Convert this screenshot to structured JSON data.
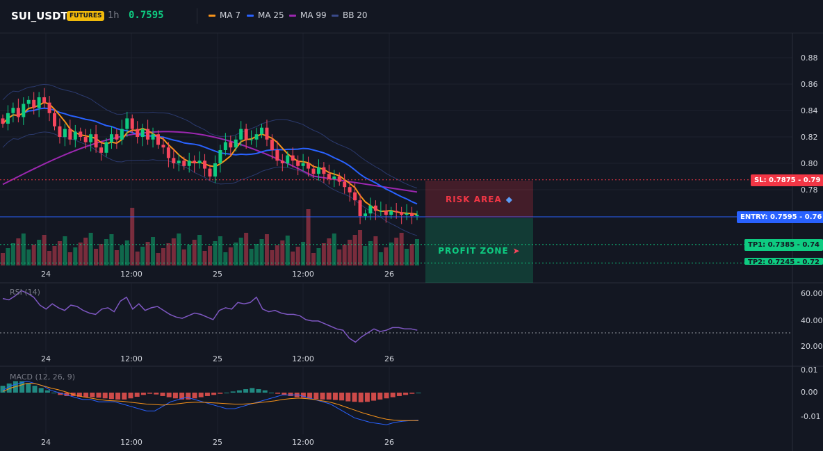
{
  "header": {
    "symbol": "SUI_USDT",
    "badge": "FUTURES",
    "timeframe": "1h",
    "last_price": "0.7595",
    "indicators": [
      {
        "label": "MA 7",
        "color": "#f7931a"
      },
      {
        "label": "MA 25",
        "color": "#2962ff"
      },
      {
        "label": "MA 99",
        "color": "#9c27b0"
      },
      {
        "label": "BB 20",
        "color": "#2b3a6e"
      }
    ]
  },
  "price_pane": {
    "y_ticks": [
      "0.88",
      "0.86",
      "0.84",
      "0.82",
      "0.80",
      "0.78"
    ],
    "x_ticks": [
      "24",
      "12:00",
      "25",
      "12:00",
      "26"
    ],
    "levels": {
      "sl": {
        "label": "SL: 0.7875",
        "value": "0.79",
        "price": 0.7875,
        "color": "#f23645"
      },
      "entry": {
        "label": "ENTRY: 0.7595",
        "value": "0.76",
        "price": 0.7595,
        "color": "#2962ff"
      },
      "tp1": {
        "label": "TP1: 0.7385",
        "value": "0.74",
        "price": 0.7385,
        "color": "#0ecb81"
      },
      "tp2": {
        "label": "TP2: 0.7245",
        "value": "0.72",
        "price": 0.7245,
        "color": "#0ecb81"
      }
    },
    "risk_zone_label": "RISK AREA",
    "risk_zone_icon": "shield-icon",
    "profit_zone_label": "PROFIT ZONE",
    "profit_zone_icon": "rocket-icon"
  },
  "rsi_pane": {
    "label": "RSI (14)",
    "y_ticks": [
      "60.00",
      "40.00",
      "20.00"
    ],
    "x_ticks": [
      "24",
      "12:00",
      "25",
      "12:00",
      "26"
    ]
  },
  "macd_pane": {
    "label": "MACD (12, 26, 9)",
    "y_ticks": [
      "0.01",
      "0.00",
      "-0.01"
    ],
    "x_ticks": [
      "24",
      "12:00",
      "25",
      "12:00",
      "26"
    ]
  },
  "colors": {
    "up": "#0ecb81",
    "down": "#f6465d",
    "background": "#131722"
  },
  "chart_data": [
    {
      "type": "candlestick",
      "title": "SUI_USDT 1h",
      "ylim": [
        0.765,
        0.895
      ],
      "close": [
        0.83,
        0.838,
        0.842,
        0.835,
        0.845,
        0.848,
        0.842,
        0.85,
        0.846,
        0.838,
        0.828,
        0.82,
        0.826,
        0.818,
        0.824,
        0.82,
        0.816,
        0.822,
        0.812,
        0.808,
        0.816,
        0.822,
        0.818,
        0.826,
        0.834,
        0.826,
        0.82,
        0.826,
        0.818,
        0.822,
        0.814,
        0.812,
        0.804,
        0.8,
        0.802,
        0.798,
        0.802,
        0.8,
        0.802,
        0.796,
        0.79,
        0.8,
        0.81,
        0.816,
        0.812,
        0.818,
        0.826,
        0.818,
        0.818,
        0.822,
        0.827,
        0.818,
        0.81,
        0.802,
        0.8,
        0.806,
        0.802,
        0.798,
        0.8,
        0.796,
        0.792,
        0.797,
        0.792,
        0.788,
        0.79,
        0.786,
        0.782,
        0.778,
        0.772,
        0.76,
        0.762,
        0.768,
        0.764,
        0.764,
        0.761,
        0.764,
        0.763,
        0.761,
        0.762,
        0.76,
        0.761
      ]
    },
    {
      "type": "line",
      "title": "RSI (14)",
      "ylim": [
        15,
        70
      ],
      "values": [
        56,
        55,
        58,
        62,
        60,
        57,
        51,
        48,
        52,
        49,
        47,
        51,
        50,
        47,
        45,
        44,
        48,
        49,
        46,
        54,
        57,
        48,
        52,
        47,
        49,
        50,
        47,
        44,
        42,
        41,
        43,
        45,
        44,
        42,
        40,
        47,
        49,
        48,
        53,
        52,
        53,
        57,
        48,
        46,
        47,
        45,
        44,
        44,
        43,
        40,
        39,
        39,
        37,
        35,
        33,
        32,
        26,
        23,
        27,
        30,
        33,
        31,
        32,
        34,
        34,
        33,
        33,
        32
      ]
    },
    {
      "type": "bar",
      "title": "MACD (12, 26, 9)",
      "ylim": [
        -0.018,
        0.012
      ],
      "histogram": [
        0.003,
        0.004,
        0.005,
        0.005,
        0.004,
        0.003,
        0.002,
        0.001,
        0.0,
        -0.001,
        -0.0015,
        -0.0015,
        -0.0018,
        -0.002,
        -0.002,
        -0.0022,
        -0.0025,
        -0.0028,
        -0.003,
        -0.003,
        -0.0025,
        -0.0018,
        -0.001,
        -0.0005,
        -0.0008,
        -0.0015,
        -0.002,
        -0.0025,
        -0.003,
        -0.003,
        -0.0025,
        -0.002,
        -0.0015,
        -0.001,
        -0.0005,
        0.0,
        0.0005,
        0.001,
        0.0015,
        0.002,
        0.0015,
        0.001,
        0.0,
        -0.0005,
        -0.001,
        -0.0015,
        -0.002,
        -0.0022,
        -0.0025,
        -0.0028,
        -0.003,
        -0.003,
        -0.0032,
        -0.0034,
        -0.0038,
        -0.004,
        -0.0042,
        -0.004,
        -0.0035,
        -0.003,
        -0.0025,
        -0.002,
        -0.0015,
        -0.001,
        -0.0005,
        0.0
      ],
      "macd": [
        0.001,
        0.003,
        0.004,
        0.005,
        0.004,
        0.003,
        0.001,
        0.0,
        -0.001,
        -0.002,
        -0.003,
        -0.003,
        -0.004,
        -0.004,
        -0.004,
        -0.005,
        -0.006,
        -0.007,
        -0.008,
        -0.008,
        -0.006,
        -0.004,
        -0.003,
        -0.002,
        -0.003,
        -0.004,
        -0.005,
        -0.006,
        -0.007,
        -0.007,
        -0.006,
        -0.005,
        -0.004,
        -0.003,
        -0.002,
        -0.001,
        -0.001,
        -0.001,
        -0.002,
        -0.003,
        -0.004,
        -0.005,
        -0.007,
        -0.009,
        -0.011,
        -0.012,
        -0.013,
        -0.0135,
        -0.014,
        -0.013,
        -0.0125,
        -0.0122,
        -0.012
      ],
      "signal": [
        0.0005,
        0.002,
        0.003,
        0.004,
        0.004,
        0.003,
        0.002,
        0.0012,
        0.0002,
        -0.001,
        -0.0018,
        -0.0024,
        -0.003,
        -0.0034,
        -0.0036,
        -0.0038,
        -0.0042,
        -0.0046,
        -0.005,
        -0.0052,
        -0.0054,
        -0.0052,
        -0.0048,
        -0.0044,
        -0.0042,
        -0.0042,
        -0.0044,
        -0.0046,
        -0.0048,
        -0.005,
        -0.005,
        -0.0048,
        -0.0044,
        -0.004,
        -0.0036,
        -0.003,
        -0.0026,
        -0.0024,
        -0.0026,
        -0.003,
        -0.0036,
        -0.0042,
        -0.0052,
        -0.0064,
        -0.0076,
        -0.0088,
        -0.0098,
        -0.0108,
        -0.0116,
        -0.012,
        -0.0122,
        -0.0122,
        -0.0122
      ]
    }
  ]
}
